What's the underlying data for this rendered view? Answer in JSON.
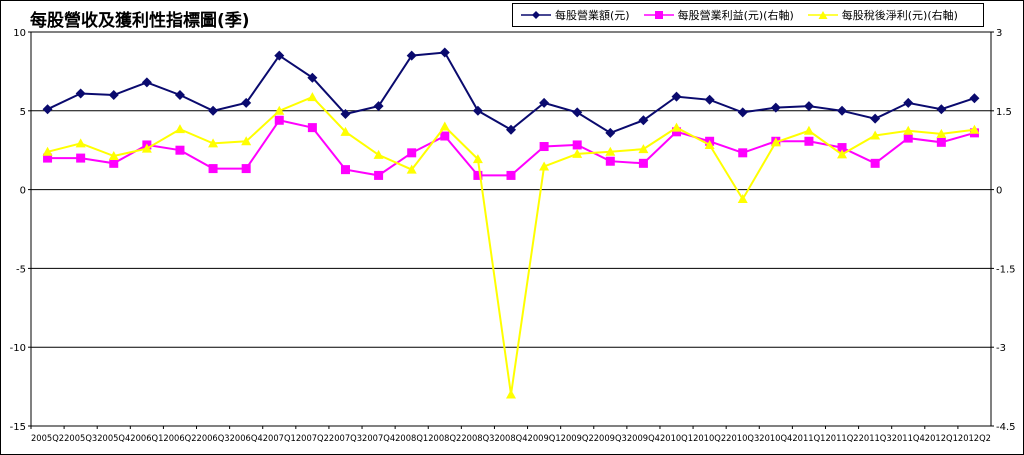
{
  "chart_data": {
    "type": "line",
    "title": "每股營收及獲利性指標圖(季)",
    "categories": [
      "2005Q2",
      "2005Q3",
      "2005Q4",
      "2006Q1",
      "2006Q2",
      "2006Q3",
      "2006Q4",
      "2007Q1",
      "2007Q2",
      "2007Q3",
      "2007Q4",
      "2008Q1",
      "2008Q2",
      "2008Q3",
      "2008Q4",
      "2009Q1",
      "2009Q2",
      "2009Q3",
      "2009Q4",
      "2010Q1",
      "2010Q2",
      "2010Q3",
      "2010Q4",
      "2011Q1",
      "2011Q2",
      "2011Q3",
      "2011Q4",
      "2012Q1",
      "2012Q2"
    ],
    "y_left": {
      "ylim": [
        -15,
        10
      ],
      "ticks": [
        10,
        5,
        0,
        -5,
        -10,
        -15
      ]
    },
    "y_right": {
      "ylim": [
        -4.5,
        3
      ],
      "ticks": [
        3,
        1.5,
        0,
        -1.5,
        -3,
        -4.5
      ]
    },
    "grid": true,
    "legend": "top-right",
    "series": [
      {
        "name": "每股營業額(元)",
        "axis": "left",
        "color": "#0a0a6e",
        "marker": "diamond",
        "values": [
          5.1,
          6.1,
          6.0,
          6.8,
          6.0,
          5.0,
          5.5,
          8.5,
          7.1,
          4.8,
          5.3,
          8.5,
          8.7,
          5.0,
          3.8,
          5.5,
          4.9,
          3.6,
          4.4,
          5.9,
          5.7,
          4.9,
          5.2,
          5.3,
          5.0,
          4.5,
          5.5,
          5.1,
          5.8
        ]
      },
      {
        "name": "每股營業利益(元)(右軸)",
        "axis": "right",
        "color": "#ff00ff",
        "marker": "square",
        "values": [
          0.6,
          0.6,
          0.5,
          0.85,
          0.75,
          0.4,
          0.4,
          1.32,
          1.18,
          0.38,
          0.27,
          0.7,
          1.02,
          0.27,
          0.27,
          0.82,
          0.85,
          0.54,
          0.5,
          1.1,
          0.92,
          0.7,
          0.92,
          0.92,
          0.8,
          0.5,
          0.98,
          0.9,
          1.08
        ]
      },
      {
        "name": "每股稅後淨利(元)(右軸)",
        "axis": "right",
        "color": "#ffff00",
        "marker": "triangle",
        "values": [
          0.72,
          0.88,
          0.64,
          0.78,
          1.15,
          0.88,
          0.92,
          1.5,
          1.76,
          1.1,
          0.66,
          0.38,
          1.2,
          0.58,
          -3.9,
          0.44,
          0.68,
          0.72,
          0.77,
          1.18,
          0.85,
          -0.18,
          0.9,
          1.12,
          0.67,
          1.03,
          1.12,
          1.06,
          1.14
        ]
      }
    ]
  }
}
